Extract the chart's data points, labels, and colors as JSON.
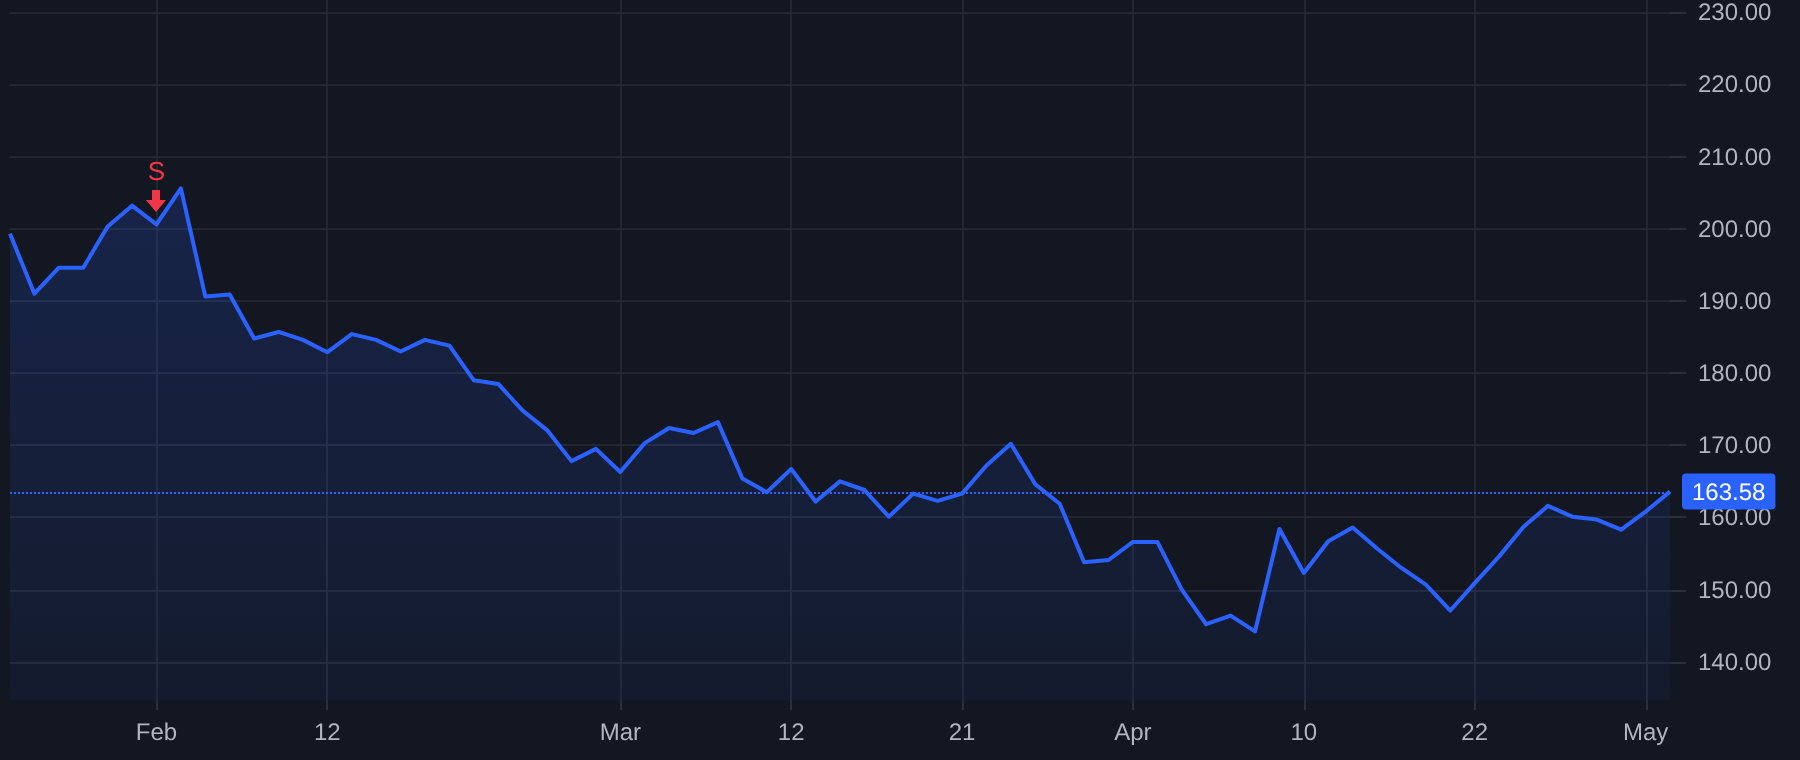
{
  "chart_data": {
    "type": "area",
    "categories": [
      null,
      null,
      null,
      null,
      null,
      null,
      "Feb",
      null,
      null,
      null,
      null,
      null,
      null,
      "12",
      null,
      null,
      null,
      null,
      null,
      null,
      null,
      null,
      null,
      null,
      null,
      "Mar",
      null,
      null,
      null,
      null,
      null,
      null,
      "12",
      null,
      null,
      null,
      null,
      null,
      null,
      "21",
      null,
      null,
      null,
      null,
      null,
      null,
      "Apr",
      null,
      null,
      null,
      null,
      null,
      null,
      "10",
      null,
      null,
      null,
      null,
      null,
      null,
      "22",
      null,
      null,
      null,
      null,
      null,
      null,
      "May",
      null
    ],
    "series": [
      {
        "color": "#2962ff",
        "values": [
          199.3,
          191.0,
          194.6,
          194.6,
          200.3,
          203.2,
          200.6,
          205.6,
          190.6,
          190.9,
          184.8,
          185.7,
          184.6,
          182.9,
          185.4,
          184.6,
          183.0,
          184.6,
          183.8,
          179.0,
          178.5,
          174.8,
          172.1,
          167.8,
          169.5,
          166.3,
          170.3,
          172.4,
          171.7,
          173.2,
          165.4,
          163.5,
          166.7,
          162.2,
          165.0,
          163.8,
          160.1,
          163.3,
          162.3,
          163.3,
          167.2,
          170.2,
          164.6,
          161.9,
          153.8,
          154.1,
          156.6,
          156.6,
          150.0,
          145.2,
          146.4,
          144.2,
          158.4,
          152.3,
          156.7,
          158.6,
          155.7,
          153.0,
          150.7,
          147.1,
          150.9,
          154.6,
          158.7,
          161.6,
          160.1,
          159.7,
          158.3,
          160.8,
          163.58
        ]
      }
    ],
    "ylim": [
      134.7,
      231.7
    ],
    "yticks": [
      {
        "value": 140,
        "label": "140.00"
      },
      {
        "value": 150,
        "label": "150.00"
      },
      {
        "value": 160,
        "label": "160.00"
      },
      {
        "value": 170,
        "label": "170.00"
      },
      {
        "value": 180,
        "label": "180.00"
      },
      {
        "value": 190,
        "label": "190.00"
      },
      {
        "value": 200,
        "label": "200.00"
      },
      {
        "value": 210,
        "label": "210.00"
      },
      {
        "value": 220,
        "label": "220.00"
      },
      {
        "value": 230,
        "label": "230.00"
      }
    ],
    "grid": true,
    "ref_lines": [
      {
        "axis": "y",
        "value": 163.58,
        "label": "163.58",
        "color": "#2962ff",
        "line_style": "dotted"
      }
    ],
    "annotations": [
      {
        "text": "S",
        "x": "Feb",
        "y": 200.6
      }
    ]
  }
}
